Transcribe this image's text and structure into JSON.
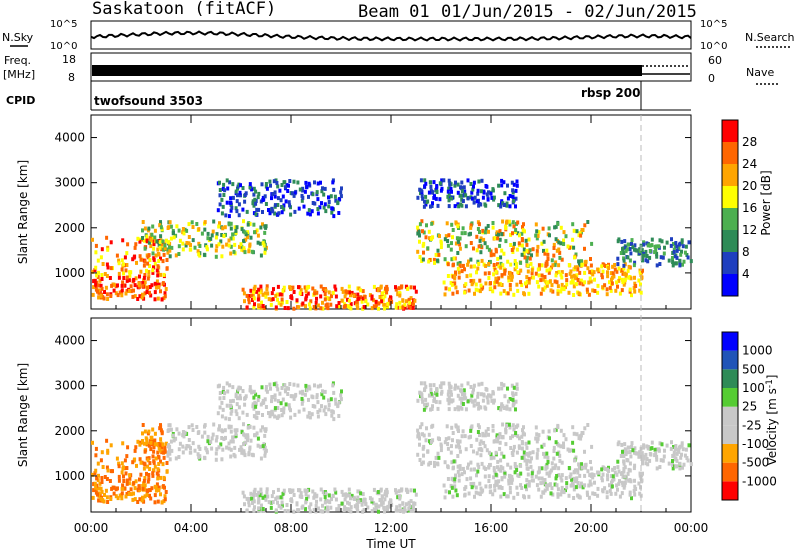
{
  "header": {
    "station": "Saskatoon (fitACF)",
    "beam": "Beam 01",
    "dates": "01/Jun/2015 - 02/Jun/2015"
  },
  "noise_panel": {
    "left_label": "N.Sky",
    "right_label": "N.Search",
    "left_ticks": [
      "10^5",
      "10^0"
    ],
    "right_ticks": [
      "10^5",
      "10^0"
    ]
  },
  "freq_panel": {
    "left_label_1": "Freq.",
    "left_label_2": "[MHz]",
    "left_ticks": [
      "18",
      "8"
    ],
    "right_label": "Nave",
    "right_ticks": [
      "60",
      "0"
    ]
  },
  "cpid_panel": {
    "label": "CPID",
    "modes": [
      "twofsound 3503",
      "rbsp 200"
    ]
  },
  "colors": {
    "power": [
      "#0000ff",
      "#1f3fbf",
      "#2e8b57",
      "#4caf50",
      "#ffff00",
      "#ffa500",
      "#ff6600",
      "#ff0000"
    ],
    "velocity": [
      "#0000ff",
      "#2155b8",
      "#2e8b57",
      "#55cc33",
      "#c8c8c8",
      "#c8c8c8",
      "#ffa500",
      "#ff6600",
      "#ff0000"
    ]
  },
  "chart_data": [
    {
      "type": "heatmap",
      "panel": "power",
      "ylabel": "Slant Range [km]",
      "yticks": [
        "1000",
        "2000",
        "3000",
        "4000"
      ],
      "ylim": [
        200,
        4500
      ],
      "colorbar_label": "Power [dB]",
      "colorbar_ticks": [
        "4",
        "8",
        "12",
        "16",
        "20",
        "24",
        "28"
      ],
      "colorbar_range": [
        0,
        30
      ]
    },
    {
      "type": "heatmap",
      "panel": "velocity",
      "ylabel": "Slant Range [km]",
      "yticks": [
        "1000",
        "2000",
        "3000",
        "4000"
      ],
      "ylim": [
        200,
        4500
      ],
      "colorbar_label": "Velocity [m s^-1]",
      "colorbar_ticks": [
        "1000",
        "500",
        "100",
        "25",
        "-25",
        "-100",
        "-500",
        "-1000"
      ],
      "xlabel": "Time UT",
      "xticks": [
        "00:00",
        "04:00",
        "08:00",
        "12:00",
        "16:00",
        "20:00",
        "00:00"
      ],
      "xlim_hours": [
        0,
        24
      ]
    }
  ]
}
